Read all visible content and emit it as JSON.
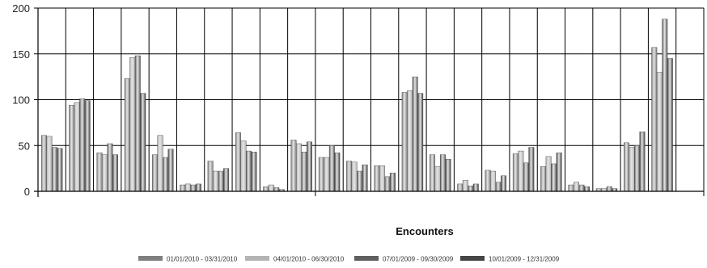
{
  "chart_data": {
    "type": "bar",
    "xlabel": "Encounters",
    "ylabel": "",
    "title": "",
    "ylim": [
      0,
      200
    ],
    "yticks": [
      0,
      50,
      100,
      150,
      200
    ],
    "grid": true,
    "legend_position": "bottom",
    "categories": [
      "",
      "",
      "",
      "",
      "",
      "",
      "",
      "",
      "",
      "",
      "",
      "",
      "",
      "",
      "",
      "",
      "",
      "",
      "",
      "",
      "",
      "",
      "",
      ""
    ],
    "series": [
      {
        "name": "01/01/2010 - 03/31/2010",
        "color": "#7f7f7f",
        "values": [
          61,
          94,
          42,
          123,
          40,
          7,
          33,
          64,
          5,
          56,
          37,
          33,
          28,
          108,
          40,
          8,
          23,
          41,
          27,
          7,
          3,
          53,
          157,
          0
        ]
      },
      {
        "name": "04/01/2010 - 06/30/2010",
        "color": "#b4b4b4",
        "values": [
          60,
          97,
          40,
          146,
          61,
          8,
          22,
          55,
          7,
          52,
          37,
          32,
          28,
          110,
          27,
          12,
          22,
          44,
          38,
          10,
          3,
          48,
          130,
          0
        ]
      },
      {
        "name": "07/01/2009 - 09/30/2009",
        "color": "#5f5f5f",
        "values": [
          48,
          101,
          52,
          148,
          37,
          7,
          22,
          44,
          4,
          43,
          50,
          22,
          16,
          125,
          40,
          6,
          10,
          31,
          30,
          7,
          5,
          50,
          188,
          0
        ]
      },
      {
        "name": "10/01/2009 - 12/31/2009",
        "color": "#454545",
        "values": [
          47,
          99,
          40,
          107,
          46,
          8,
          25,
          43,
          2,
          54,
          42,
          29,
          20,
          107,
          35,
          8,
          17,
          48,
          42,
          5,
          3,
          65,
          145,
          0
        ]
      }
    ]
  }
}
